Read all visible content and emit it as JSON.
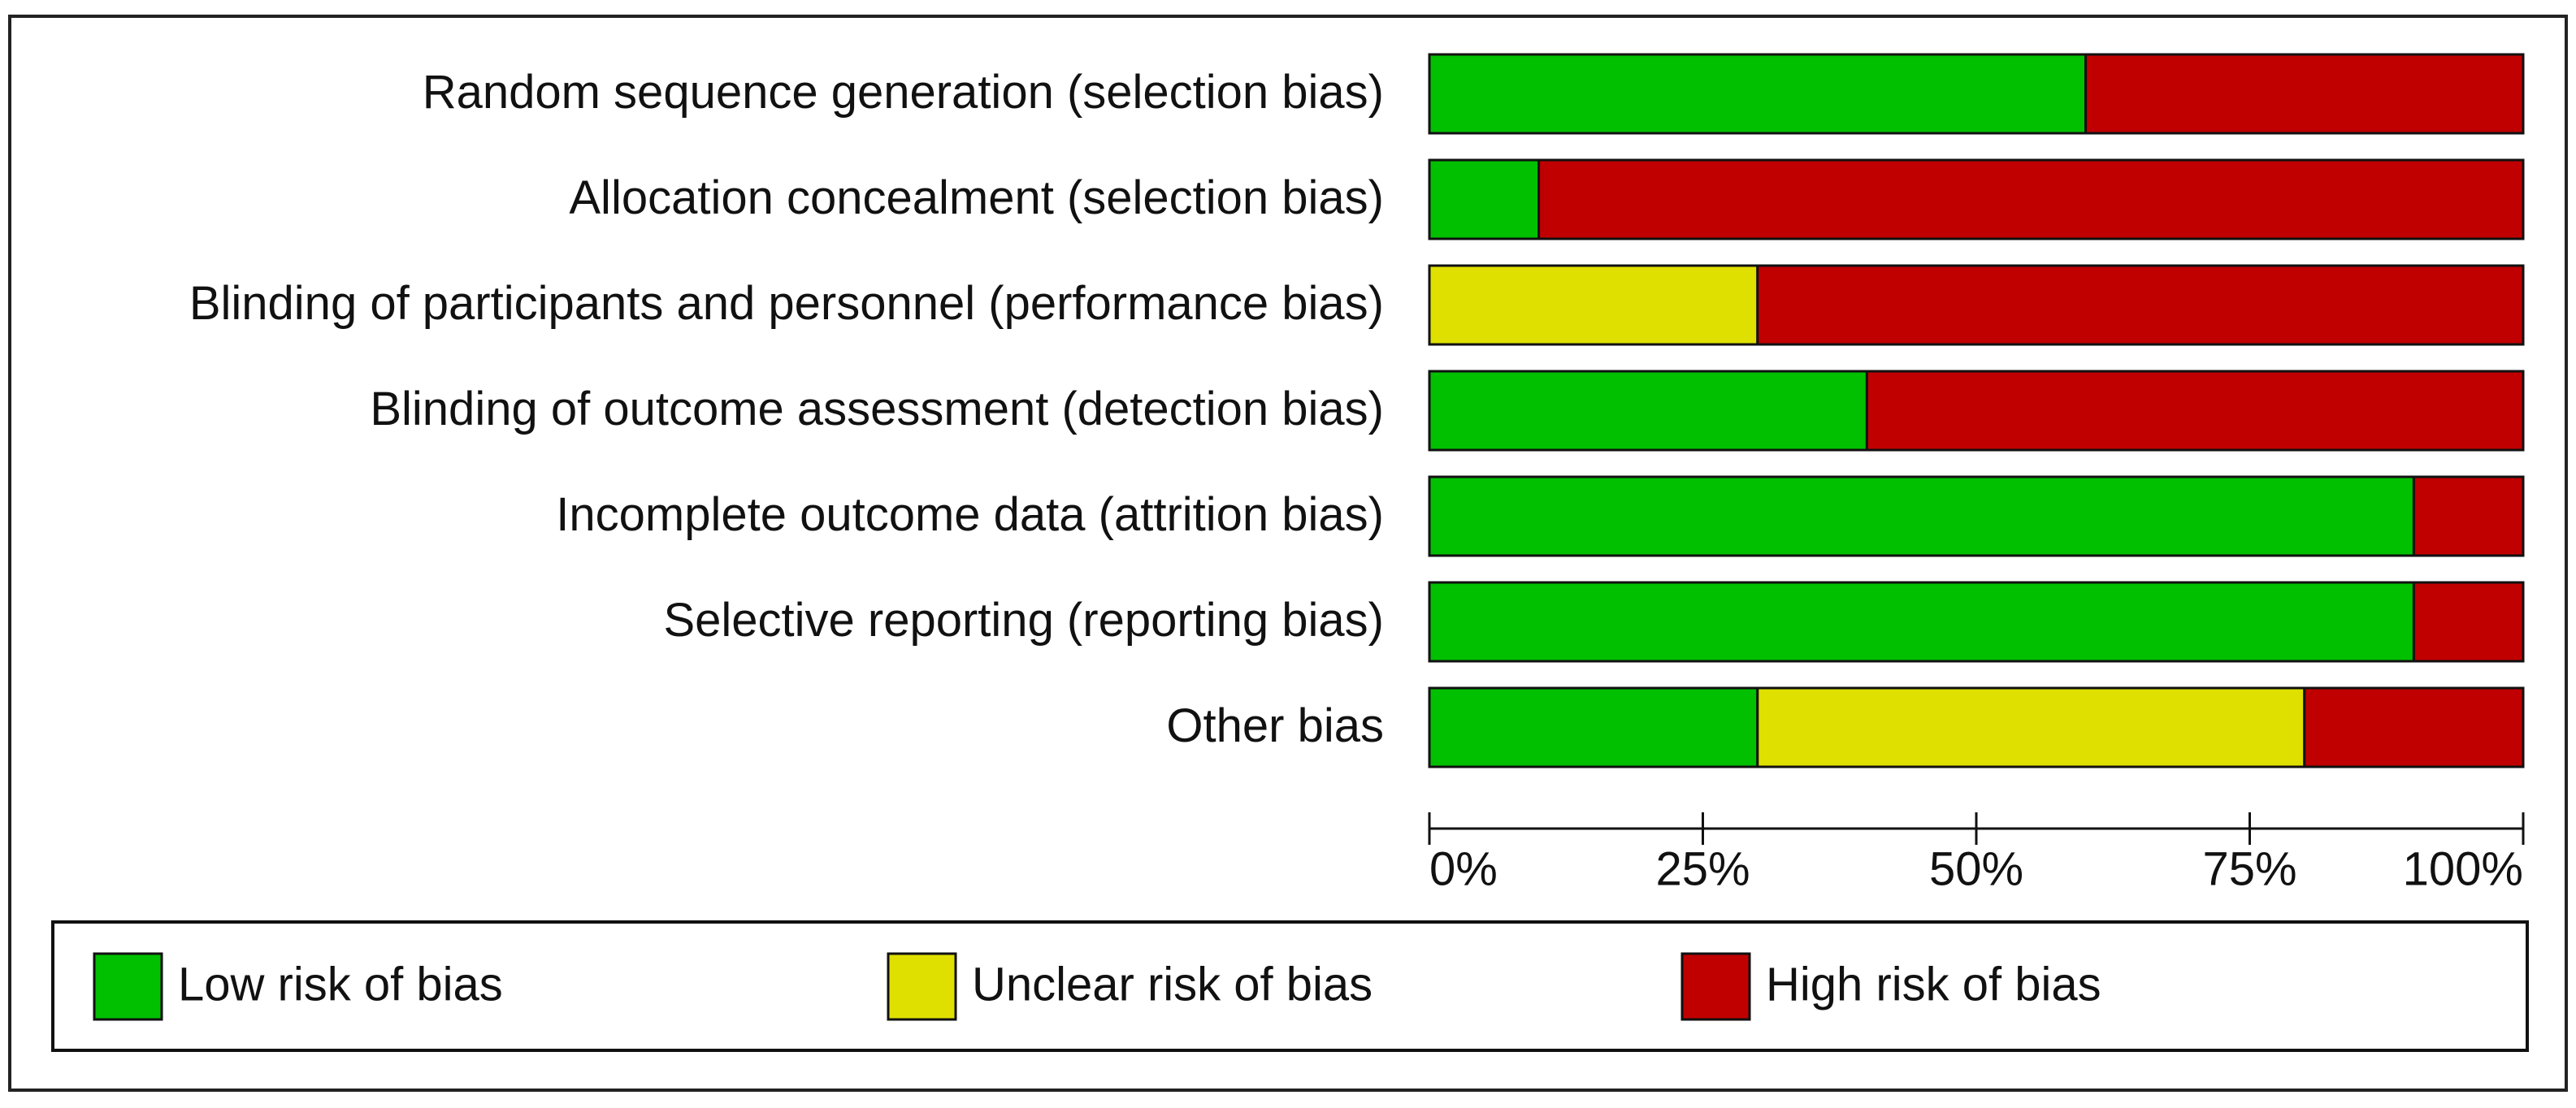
{
  "chart_data": {
    "type": "stacked-horizontal-bar",
    "categories": [
      "Random sequence generation (selection bias)",
      "Allocation concealment (selection bias)",
      "Blinding of participants and personnel (performance bias)",
      "Blinding of outcome assessment (detection bias)",
      "Incomplete outcome data (attrition bias)",
      "Selective reporting (reporting bias)",
      "Other bias"
    ],
    "series": [
      {
        "name": "Low risk of bias",
        "color": "#00c000",
        "values": [
          60,
          10,
          0,
          40,
          90,
          90,
          30
        ]
      },
      {
        "name": "Unclear risk of bias",
        "color": "#e0e000",
        "values": [
          0,
          0,
          30,
          0,
          0,
          0,
          50
        ]
      },
      {
        "name": "High risk of bias",
        "color": "#c00000",
        "values": [
          40,
          90,
          70,
          60,
          10,
          10,
          20
        ]
      }
    ],
    "xlim": [
      0,
      100
    ],
    "xticks": [
      {
        "value": 0,
        "label": "0%"
      },
      {
        "value": 25,
        "label": "25%"
      },
      {
        "value": 50,
        "label": "50%"
      },
      {
        "value": 75,
        "label": "75%"
      },
      {
        "value": 100,
        "label": "100%"
      }
    ]
  }
}
